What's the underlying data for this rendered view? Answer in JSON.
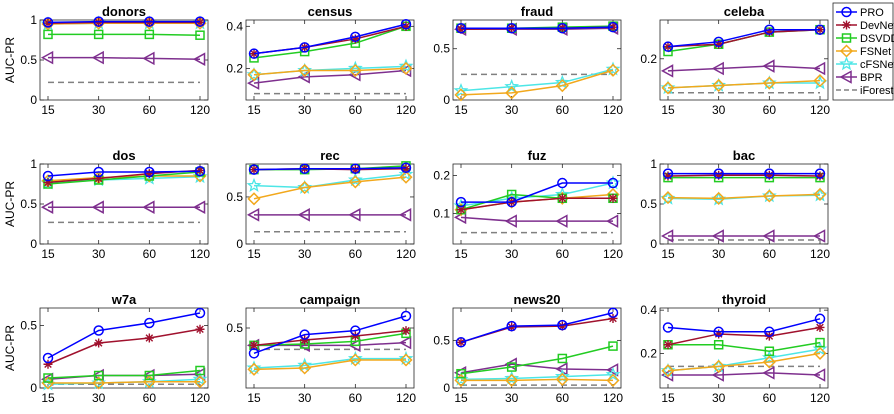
{
  "colors": {
    "PRO": "#0000ff",
    "DevNet": "#a0112d",
    "DSVDD": "#22cc22",
    "FSNet": "#f2a81c",
    "cFSNet": "#4de6e6",
    "BPR": "#7e2f8e",
    "iForest": "#808080"
  },
  "legend": {
    "placement": "right",
    "entries": [
      {
        "name": "PRO",
        "marker": "circle"
      },
      {
        "name": "DevNet",
        "marker": "asterisk"
      },
      {
        "name": "DSVDD",
        "marker": "square"
      },
      {
        "name": "FSNet",
        "marker": "diamond"
      },
      {
        "name": "cFSNet",
        "marker": "star"
      },
      {
        "name": "BPR",
        "marker": "triangle-left"
      },
      {
        "name": "iForest",
        "marker": "dashed-line"
      }
    ]
  },
  "chart_data": [
    {
      "type": "line",
      "title": "donors",
      "ylabel": "AUC-PR",
      "x": [
        "15",
        "30",
        "60",
        "120"
      ],
      "ylim": [
        0,
        1
      ],
      "yticks": [
        0,
        0.5,
        1
      ],
      "ytick_labels": [
        "0",
        "0.5",
        "1"
      ],
      "series": [
        {
          "name": "PRO",
          "values": [
            0.97,
            0.98,
            0.98,
            0.98
          ]
        },
        {
          "name": "DevNet",
          "values": [
            0.96,
            0.97,
            0.97,
            0.97
          ]
        },
        {
          "name": "DSVDD",
          "values": [
            0.82,
            0.82,
            0.82,
            0.81
          ]
        },
        {
          "name": "FSNet",
          "values": [
            0.95,
            0.96,
            0.96,
            0.96
          ]
        },
        {
          "name": "cFSNet",
          "values": [
            0.95,
            0.96,
            0.96,
            0.96
          ]
        },
        {
          "name": "BPR",
          "values": [
            0.53,
            0.53,
            0.52,
            0.51
          ]
        },
        {
          "name": "iForest",
          "values": [
            0.22,
            0.22,
            0.22,
            0.22
          ]
        }
      ]
    },
    {
      "type": "line",
      "title": "census",
      "ylabel": "",
      "x": [
        "15",
        "30",
        "60",
        "120"
      ],
      "ylim": [
        0.05,
        0.43
      ],
      "yticks": [
        0.2,
        0.4
      ],
      "ytick_labels": [
        "0.2",
        "0.4"
      ],
      "series": [
        {
          "name": "PRO",
          "values": [
            0.27,
            0.3,
            0.35,
            0.41
          ]
        },
        {
          "name": "DevNet",
          "values": [
            0.27,
            0.3,
            0.34,
            0.4
          ]
        },
        {
          "name": "DSVDD",
          "values": [
            0.25,
            0.28,
            0.32,
            0.4
          ]
        },
        {
          "name": "FSNet",
          "values": [
            0.17,
            0.19,
            0.19,
            0.2
          ]
        },
        {
          "name": "cFSNet",
          "values": [
            0.17,
            0.19,
            0.2,
            0.21
          ]
        },
        {
          "name": "BPR",
          "values": [
            0.13,
            0.16,
            0.17,
            0.19
          ]
        },
        {
          "name": "iForest",
          "values": [
            0.08,
            0.08,
            0.08,
            0.08
          ]
        }
      ]
    },
    {
      "type": "line",
      "title": "fraud",
      "ylabel": "",
      "x": [
        "15",
        "30",
        "60",
        "120"
      ],
      "ylim": [
        0,
        0.78
      ],
      "yticks": [
        0,
        0.5
      ],
      "ytick_labels": [
        "0",
        "0.5"
      ],
      "series": [
        {
          "name": "PRO",
          "values": [
            0.7,
            0.7,
            0.7,
            0.71
          ]
        },
        {
          "name": "DevNet",
          "values": [
            0.69,
            0.7,
            0.7,
            0.71
          ]
        },
        {
          "name": "DSVDD",
          "values": [
            0.7,
            0.7,
            0.71,
            0.72
          ]
        },
        {
          "name": "FSNet",
          "values": [
            0.05,
            0.07,
            0.14,
            0.29
          ]
        },
        {
          "name": "cFSNet",
          "values": [
            0.09,
            0.13,
            0.17,
            0.3
          ]
        },
        {
          "name": "BPR",
          "values": [
            0.69,
            0.69,
            0.69,
            0.7
          ]
        },
        {
          "name": "iForest",
          "values": [
            0.25,
            0.25,
            0.25,
            0.25
          ]
        }
      ]
    },
    {
      "type": "line",
      "title": "celeba",
      "ylabel": "",
      "x": [
        "15",
        "30",
        "60",
        "120"
      ],
      "ylim": [
        0.03,
        0.36
      ],
      "yticks": [
        0.2
      ],
      "ytick_labels": [
        "0.2"
      ],
      "series": [
        {
          "name": "PRO",
          "values": [
            0.25,
            0.27,
            0.32,
            0.32
          ]
        },
        {
          "name": "DevNet",
          "values": [
            0.25,
            0.26,
            0.31,
            0.32
          ]
        },
        {
          "name": "DSVDD",
          "values": [
            0.23,
            0.26,
            0.31,
            0.32
          ]
        },
        {
          "name": "FSNet",
          "values": [
            0.08,
            0.09,
            0.1,
            0.11
          ]
        },
        {
          "name": "cFSNet",
          "values": [
            0.08,
            0.09,
            0.1,
            0.1
          ]
        },
        {
          "name": "BPR",
          "values": [
            0.15,
            0.16,
            0.17,
            0.16
          ]
        },
        {
          "name": "iForest",
          "values": [
            0.06,
            0.06,
            0.06,
            0.06
          ]
        }
      ]
    },
    {
      "type": "line",
      "title": "dos",
      "ylabel": "AUC-PR",
      "x": [
        "15",
        "30",
        "60",
        "120"
      ],
      "ylim": [
        0,
        1
      ],
      "yticks": [
        0,
        0.5,
        1
      ],
      "ytick_labels": [
        "0",
        "0.5",
        "1"
      ],
      "series": [
        {
          "name": "PRO",
          "values": [
            0.85,
            0.9,
            0.9,
            0.91
          ]
        },
        {
          "name": "DevNet",
          "values": [
            0.77,
            0.82,
            0.88,
            0.92
          ]
        },
        {
          "name": "DSVDD",
          "values": [
            0.75,
            0.8,
            0.85,
            0.9
          ]
        },
        {
          "name": "FSNet",
          "values": [
            0.79,
            0.83,
            0.85,
            0.85
          ]
        },
        {
          "name": "cFSNet",
          "values": [
            0.76,
            0.8,
            0.82,
            0.84
          ]
        },
        {
          "name": "BPR",
          "values": [
            0.46,
            0.46,
            0.46,
            0.46
          ]
        },
        {
          "name": "iForest",
          "values": [
            0.27,
            0.27,
            0.27,
            0.27
          ]
        }
      ]
    },
    {
      "type": "line",
      "title": "rec",
      "ylabel": "",
      "x": [
        "15",
        "30",
        "60",
        "120"
      ],
      "ylim": [
        0,
        0.85
      ],
      "yticks": [
        0,
        0.5
      ],
      "ytick_labels": [
        "0",
        "0.5"
      ],
      "series": [
        {
          "name": "PRO",
          "values": [
            0.79,
            0.8,
            0.8,
            0.81
          ]
        },
        {
          "name": "DevNet",
          "values": [
            0.79,
            0.8,
            0.79,
            0.8
          ]
        },
        {
          "name": "DSVDD",
          "values": [
            0.79,
            0.79,
            0.8,
            0.83
          ]
        },
        {
          "name": "FSNet",
          "values": [
            0.48,
            0.6,
            0.66,
            0.71
          ]
        },
        {
          "name": "cFSNet",
          "values": [
            0.62,
            0.6,
            0.68,
            0.74
          ]
        },
        {
          "name": "BPR",
          "values": [
            0.31,
            0.31,
            0.31,
            0.31
          ]
        },
        {
          "name": "iForest",
          "values": [
            0.13,
            0.13,
            0.13,
            0.13
          ]
        }
      ]
    },
    {
      "type": "line",
      "title": "fuz",
      "ylabel": "",
      "x": [
        "15",
        "30",
        "60",
        "120"
      ],
      "ylim": [
        0.02,
        0.23
      ],
      "yticks": [
        0.1,
        0.2
      ],
      "ytick_labels": [
        "0.1",
        "0.2"
      ],
      "series": [
        {
          "name": "PRO",
          "values": [
            0.13,
            0.13,
            0.18,
            0.18
          ]
        },
        {
          "name": "DevNet",
          "values": [
            0.11,
            0.13,
            0.14,
            0.14
          ]
        },
        {
          "name": "DSVDD",
          "values": [
            0.11,
            0.15,
            0.14,
            0.14
          ]
        },
        {
          "name": "FSNet",
          "values": [
            0.11,
            0.13,
            0.14,
            0.15
          ]
        },
        {
          "name": "cFSNet",
          "values": [
            0.12,
            0.14,
            0.15,
            0.18
          ]
        },
        {
          "name": "BPR",
          "values": [
            0.09,
            0.08,
            0.08,
            0.08
          ]
        },
        {
          "name": "iForest",
          "values": [
            0.05,
            0.05,
            0.05,
            0.05
          ]
        }
      ]
    },
    {
      "type": "line",
      "title": "bac",
      "ylabel": "",
      "x": [
        "15",
        "30",
        "60",
        "120"
      ],
      "ylim": [
        0,
        1
      ],
      "yticks": [
        0,
        0.5,
        1
      ],
      "ytick_labels": [
        "0",
        "0.5",
        "1"
      ],
      "series": [
        {
          "name": "PRO",
          "values": [
            0.88,
            0.88,
            0.88,
            0.88
          ]
        },
        {
          "name": "DevNet",
          "values": [
            0.85,
            0.86,
            0.86,
            0.85
          ]
        },
        {
          "name": "DSVDD",
          "values": [
            0.83,
            0.83,
            0.83,
            0.83
          ]
        },
        {
          "name": "FSNet",
          "values": [
            0.58,
            0.57,
            0.6,
            0.62
          ]
        },
        {
          "name": "cFSNet",
          "values": [
            0.57,
            0.56,
            0.6,
            0.61
          ]
        },
        {
          "name": "BPR",
          "values": [
            0.1,
            0.1,
            0.1,
            0.1
          ]
        },
        {
          "name": "iForest",
          "values": [
            0.05,
            0.05,
            0.05,
            0.05
          ]
        }
      ]
    },
    {
      "type": "line",
      "title": "w7a",
      "ylabel": "AUC-PR",
      "x": [
        "15",
        "30",
        "60",
        "120"
      ],
      "ylim": [
        0,
        0.64
      ],
      "yticks": [
        0,
        0.5
      ],
      "ytick_labels": [
        "0",
        "0.5"
      ],
      "series": [
        {
          "name": "PRO",
          "values": [
            0.24,
            0.46,
            0.52,
            0.6
          ]
        },
        {
          "name": "DevNet",
          "values": [
            0.19,
            0.36,
            0.4,
            0.47
          ]
        },
        {
          "name": "DSVDD",
          "values": [
            0.08,
            0.1,
            0.1,
            0.14
          ]
        },
        {
          "name": "FSNet",
          "values": [
            0.04,
            0.04,
            0.05,
            0.05
          ]
        },
        {
          "name": "cFSNet",
          "values": [
            0.03,
            0.04,
            0.05,
            0.07
          ]
        },
        {
          "name": "BPR",
          "values": [
            0.07,
            0.1,
            0.1,
            0.11
          ]
        },
        {
          "name": "iForest",
          "values": [
            0.03,
            0.03,
            0.03,
            0.03
          ]
        }
      ]
    },
    {
      "type": "line",
      "title": "campaign",
      "ylabel": "",
      "x": [
        "15",
        "30",
        "60",
        "120"
      ],
      "ylim": [
        0.05,
        0.65
      ],
      "yticks": [
        0.5
      ],
      "ytick_labels": [
        "0.5"
      ],
      "series": [
        {
          "name": "PRO",
          "values": [
            0.31,
            0.45,
            0.48,
            0.59
          ]
        },
        {
          "name": "DevNet",
          "values": [
            0.37,
            0.41,
            0.44,
            0.48
          ]
        },
        {
          "name": "DSVDD",
          "values": [
            0.37,
            0.38,
            0.4,
            0.46
          ]
        },
        {
          "name": "FSNet",
          "values": [
            0.19,
            0.2,
            0.26,
            0.26
          ]
        },
        {
          "name": "cFSNet",
          "values": [
            0.2,
            0.22,
            0.27,
            0.27
          ]
        },
        {
          "name": "BPR",
          "values": [
            0.37,
            0.37,
            0.37,
            0.39
          ]
        },
        {
          "name": "iForest",
          "values": [
            0.34,
            0.34,
            0.34,
            0.34
          ]
        }
      ]
    },
    {
      "type": "line",
      "title": "news20",
      "ylabel": "",
      "x": [
        "15",
        "30",
        "60",
        "120"
      ],
      "ylim": [
        0,
        0.84
      ],
      "yticks": [
        0,
        0.5
      ],
      "ytick_labels": [
        "0",
        "0.5"
      ],
      "series": [
        {
          "name": "PRO",
          "values": [
            0.48,
            0.65,
            0.66,
            0.79
          ]
        },
        {
          "name": "DevNet",
          "values": [
            0.48,
            0.64,
            0.65,
            0.73
          ]
        },
        {
          "name": "DSVDD",
          "values": [
            0.15,
            0.22,
            0.31,
            0.44
          ]
        },
        {
          "name": "FSNet",
          "values": [
            0.08,
            0.08,
            0.09,
            0.08
          ]
        },
        {
          "name": "cFSNet",
          "values": [
            0.09,
            0.1,
            0.12,
            0.14
          ]
        },
        {
          "name": "BPR",
          "values": [
            0.16,
            0.25,
            0.2,
            0.19
          ]
        },
        {
          "name": "iForest",
          "values": [
            0.03,
            0.03,
            0.03,
            0.03
          ]
        }
      ]
    },
    {
      "type": "line",
      "title": "thyroid",
      "ylabel": "",
      "x": [
        "15",
        "30",
        "60",
        "120"
      ],
      "ylim": [
        0.04,
        0.41
      ],
      "yticks": [
        0.2,
        0.4
      ],
      "ytick_labels": [
        "0.2",
        "0.4"
      ],
      "series": [
        {
          "name": "PRO",
          "values": [
            0.32,
            0.3,
            0.3,
            0.36
          ]
        },
        {
          "name": "DevNet",
          "values": [
            0.24,
            0.29,
            0.28,
            0.32
          ]
        },
        {
          "name": "DSVDD",
          "values": [
            0.24,
            0.24,
            0.21,
            0.25
          ]
        },
        {
          "name": "FSNet",
          "values": [
            0.12,
            0.14,
            0.16,
            0.2
          ]
        },
        {
          "name": "cFSNet",
          "values": [
            0.12,
            0.14,
            0.18,
            0.22
          ]
        },
        {
          "name": "BPR",
          "values": [
            0.1,
            0.1,
            0.11,
            0.1
          ]
        },
        {
          "name": "iForest",
          "values": [
            0.14,
            0.14,
            0.14,
            0.14
          ]
        }
      ]
    }
  ]
}
